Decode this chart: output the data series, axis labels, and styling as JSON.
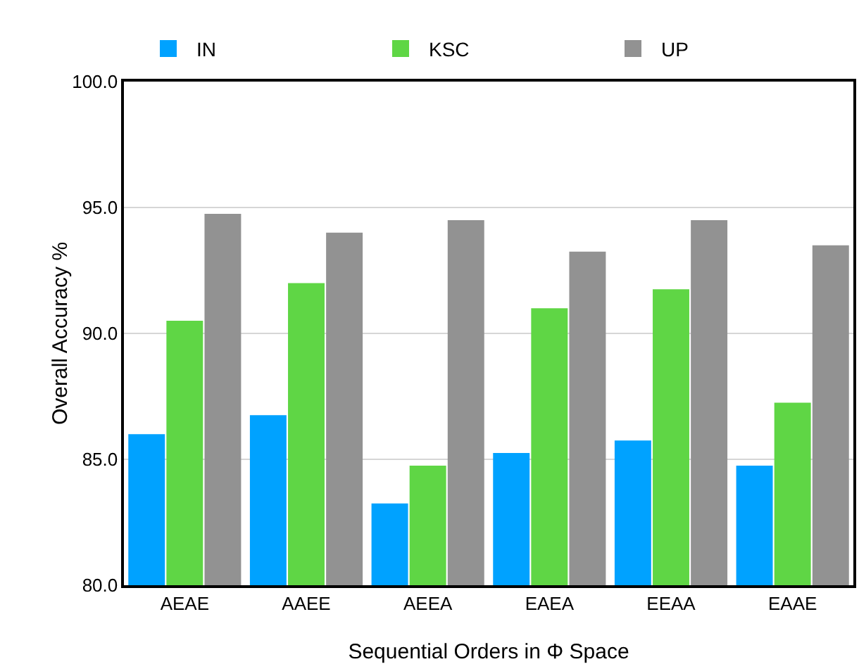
{
  "chart_data": {
    "type": "bar",
    "xlabel": "Sequential Orders in Φ Space",
    "ylabel": "Overall Accuracy %",
    "categories": [
      "AEAE",
      "AAEE",
      "AEEA",
      "EAEA",
      "EEAA",
      "EAAE"
    ],
    "series": [
      {
        "name": "IN",
        "color": "#00a2ff",
        "values": [
          86.0,
          86.75,
          83.25,
          85.25,
          85.75,
          84.75
        ]
      },
      {
        "name": "KSC",
        "color": "#5fd645",
        "values": [
          90.5,
          92.0,
          84.75,
          91.0,
          91.75,
          87.25
        ]
      },
      {
        "name": "UP",
        "color": "#929292",
        "values": [
          94.75,
          94.0,
          94.5,
          93.25,
          94.5,
          93.5
        ]
      }
    ],
    "ylim": [
      80,
      100
    ],
    "yticks": [
      {
        "value": 80,
        "label": "80.0"
      },
      {
        "value": 85,
        "label": "85.0"
      },
      {
        "value": 90,
        "label": "90.0"
      },
      {
        "value": 95,
        "label": "95.0"
      },
      {
        "value": 100,
        "label": "100.0"
      }
    ],
    "grid": "y",
    "legend": "top"
  }
}
